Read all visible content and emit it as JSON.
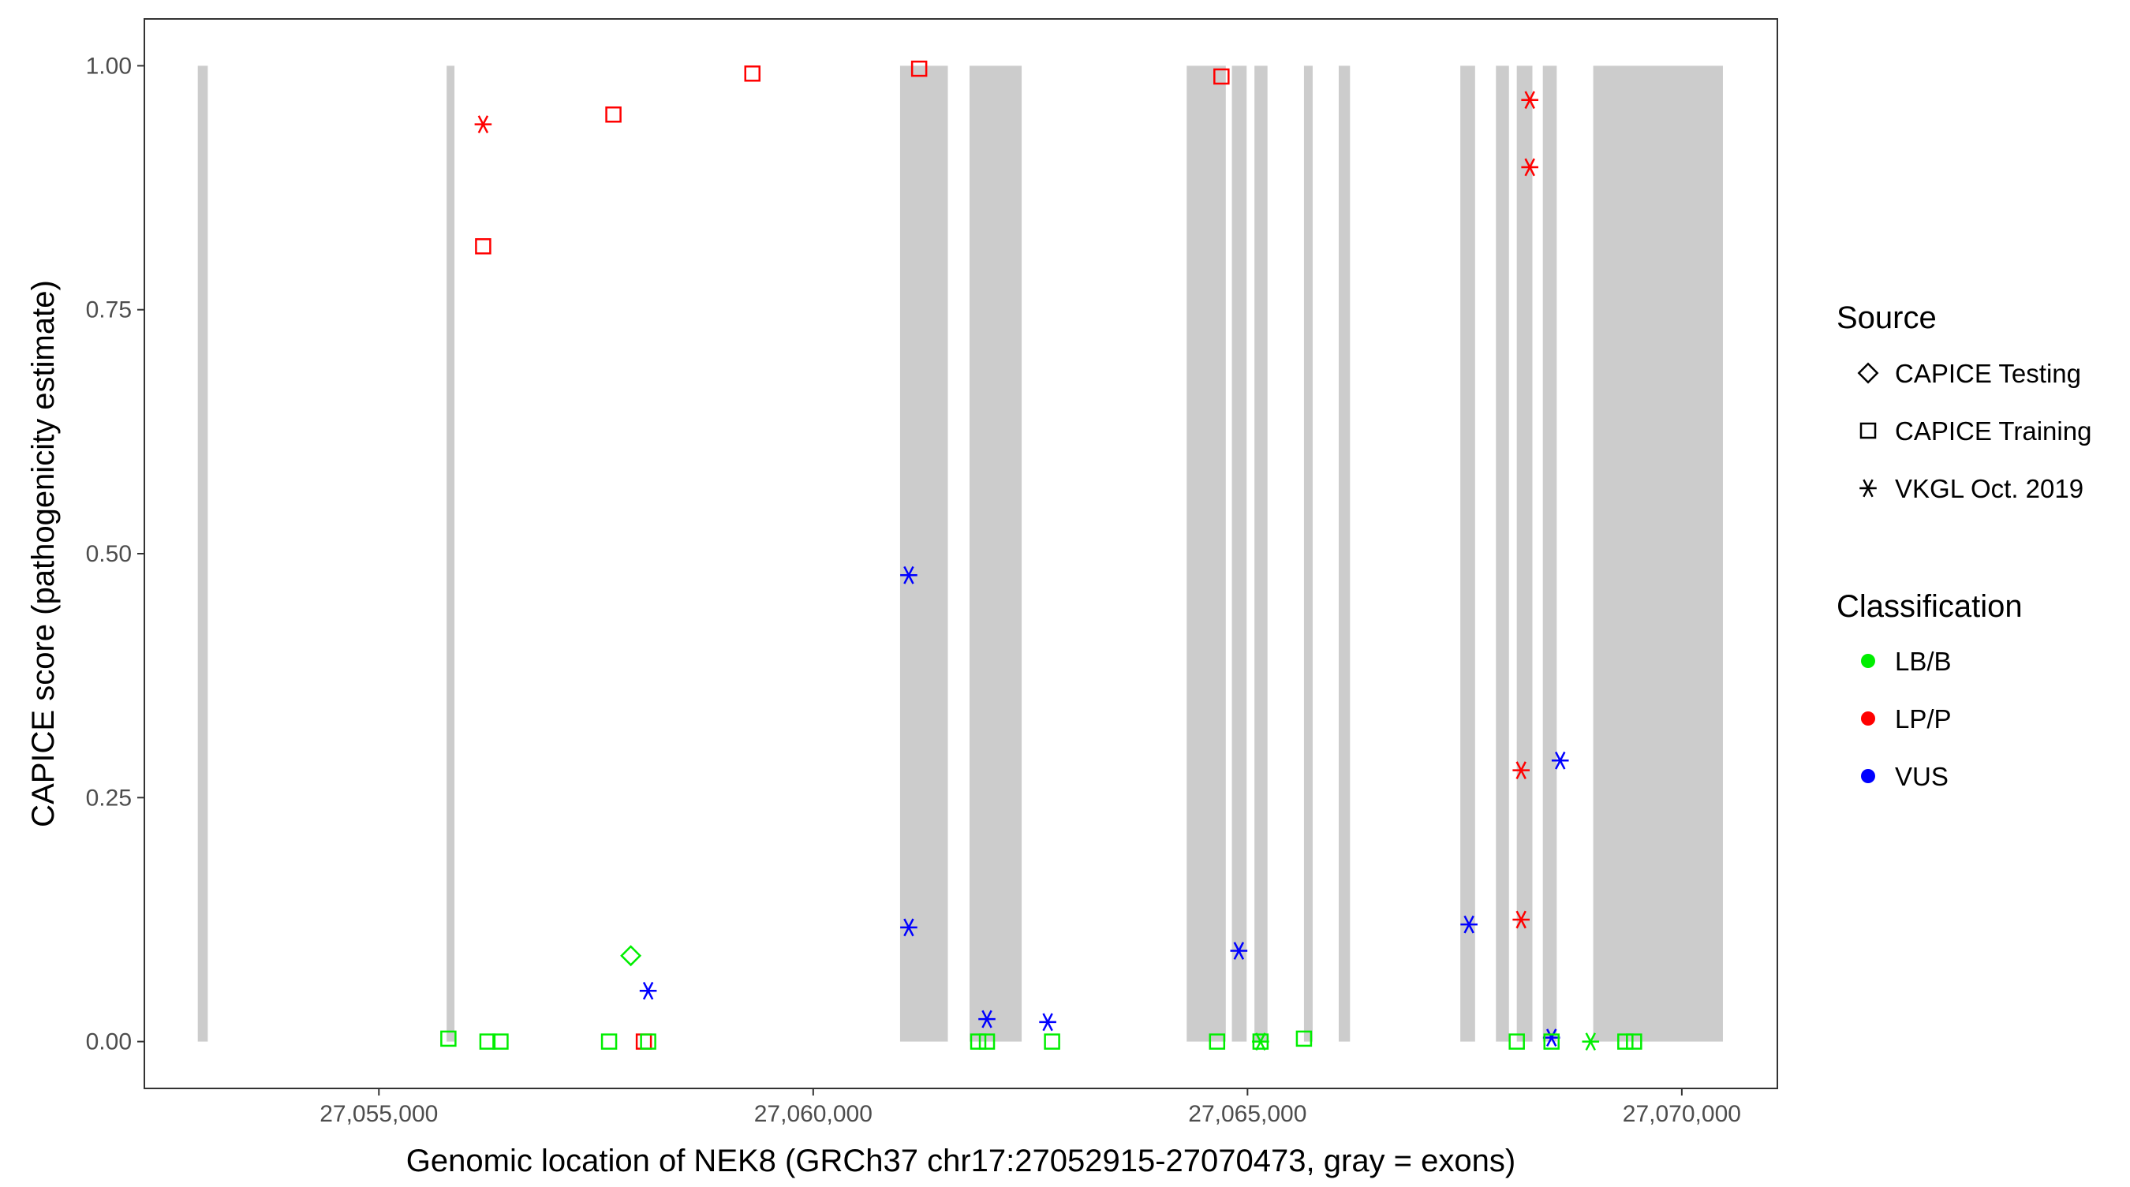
{
  "chart_data": {
    "type": "scatter",
    "xlabel": "Genomic location of NEK8 (GRCh37 chr17:27052915-27070473, gray = exons)",
    "ylabel": "CAPICE score (pathogenicity estimate)",
    "xlim": [
      27052300,
      27071100
    ],
    "ylim": [
      -0.048,
      1.048
    ],
    "x_ticks": [
      27055000,
      27060000,
      27065000,
      27070000
    ],
    "x_tick_labels": [
      "27,055,000",
      "27,060,000",
      "27,065,000",
      "27,070,000"
    ],
    "y_ticks": [
      0,
      0.25,
      0.5,
      0.75,
      1.0
    ],
    "y_tick_labels": [
      "0.00",
      "0.25",
      "0.50",
      "0.75",
      "1.00"
    ],
    "grid": false,
    "exons": [
      [
        27052915,
        27053030
      ],
      [
        27055780,
        27055870
      ],
      [
        27061000,
        27061550
      ],
      [
        27061800,
        27062400
      ],
      [
        27064300,
        27064750
      ],
      [
        27064820,
        27064990
      ],
      [
        27065080,
        27065230
      ],
      [
        27065650,
        27065750
      ],
      [
        27066050,
        27066180
      ],
      [
        27067450,
        27067620
      ],
      [
        27067860,
        27068010
      ],
      [
        27068100,
        27068280
      ],
      [
        27068400,
        27068560
      ],
      [
        27068980,
        27070473
      ]
    ],
    "legend": {
      "position": "right",
      "source_title": "Source",
      "source_items": [
        {
          "label": "CAPICE Testing",
          "shape": "diamond"
        },
        {
          "label": "CAPICE Training",
          "shape": "square"
        },
        {
          "label": "VKGL Oct. 2019",
          "shape": "asterisk"
        }
      ],
      "class_title": "Classification",
      "class_items": [
        {
          "label": "LB/B",
          "color": "#00ee00"
        },
        {
          "label": "LP/P",
          "color": "#ff0000"
        },
        {
          "label": "VUS",
          "color": "#0000ff"
        }
      ]
    },
    "points": [
      {
        "x": 27056200,
        "y": 0.94,
        "source": "VKGL Oct. 2019",
        "class": "LP/P"
      },
      {
        "x": 27056200,
        "y": 0.815,
        "source": "CAPICE Training",
        "class": "LP/P"
      },
      {
        "x": 27057700,
        "y": 0.95,
        "source": "CAPICE Training",
        "class": "LP/P"
      },
      {
        "x": 27059300,
        "y": 0.992,
        "source": "CAPICE Training",
        "class": "LP/P"
      },
      {
        "x": 27061220,
        "y": 0.997,
        "source": "CAPICE Training",
        "class": "LP/P"
      },
      {
        "x": 27064700,
        "y": 0.989,
        "source": "CAPICE Training",
        "class": "LP/P"
      },
      {
        "x": 27068250,
        "y": 0.965,
        "source": "VKGL Oct. 2019",
        "class": "LP/P"
      },
      {
        "x": 27068250,
        "y": 0.896,
        "source": "VKGL Oct. 2019",
        "class": "LP/P"
      },
      {
        "x": 27068150,
        "y": 0.278,
        "source": "VKGL Oct. 2019",
        "class": "LP/P"
      },
      {
        "x": 27068150,
        "y": 0.125,
        "source": "VKGL Oct. 2019",
        "class": "LP/P"
      },
      {
        "x": 27058050,
        "y": 0.0,
        "source": "CAPICE Training",
        "class": "LP/P"
      },
      {
        "x": 27061100,
        "y": 0.478,
        "source": "VKGL Oct. 2019",
        "class": "VUS"
      },
      {
        "x": 27061100,
        "y": 0.117,
        "source": "VKGL Oct. 2019",
        "class": "VUS"
      },
      {
        "x": 27058100,
        "y": 0.052,
        "source": "VKGL Oct. 2019",
        "class": "VUS"
      },
      {
        "x": 27062000,
        "y": 0.023,
        "source": "VKGL Oct. 2019",
        "class": "VUS"
      },
      {
        "x": 27062700,
        "y": 0.02,
        "source": "VKGL Oct. 2019",
        "class": "VUS"
      },
      {
        "x": 27064900,
        "y": 0.093,
        "source": "VKGL Oct. 2019",
        "class": "VUS"
      },
      {
        "x": 27067550,
        "y": 0.12,
        "source": "VKGL Oct. 2019",
        "class": "VUS"
      },
      {
        "x": 27068600,
        "y": 0.288,
        "source": "VKGL Oct. 2019",
        "class": "VUS"
      },
      {
        "x": 27068500,
        "y": 0.004,
        "source": "VKGL Oct. 2019",
        "class": "VUS"
      },
      {
        "x": 27057900,
        "y": 0.088,
        "source": "CAPICE Testing",
        "class": "LB/B"
      },
      {
        "x": 27055800,
        "y": 0.003,
        "source": "CAPICE Training",
        "class": "LB/B"
      },
      {
        "x": 27056250,
        "y": 0.0,
        "source": "CAPICE Training",
        "class": "LB/B"
      },
      {
        "x": 27056400,
        "y": 0.0,
        "source": "CAPICE Training",
        "class": "LB/B"
      },
      {
        "x": 27057650,
        "y": 0.0,
        "source": "CAPICE Training",
        "class": "LB/B"
      },
      {
        "x": 27058100,
        "y": 0.0,
        "source": "CAPICE Training",
        "class": "LB/B"
      },
      {
        "x": 27061900,
        "y": 0.0,
        "source": "CAPICE Training",
        "class": "LB/B"
      },
      {
        "x": 27062000,
        "y": 0.0,
        "source": "CAPICE Training",
        "class": "LB/B"
      },
      {
        "x": 27062750,
        "y": 0.0,
        "source": "CAPICE Training",
        "class": "LB/B"
      },
      {
        "x": 27064650,
        "y": 0.0,
        "source": "CAPICE Training",
        "class": "LB/B"
      },
      {
        "x": 27065150,
        "y": 0.0,
        "source": "CAPICE Training",
        "class": "LB/B"
      },
      {
        "x": 27065150,
        "y": 0.0,
        "source": "VKGL Oct. 2019",
        "class": "LB/B"
      },
      {
        "x": 27065650,
        "y": 0.003,
        "source": "CAPICE Training",
        "class": "LB/B"
      },
      {
        "x": 27068100,
        "y": 0.0,
        "source": "CAPICE Training",
        "class": "LB/B"
      },
      {
        "x": 27068500,
        "y": 0.0,
        "source": "CAPICE Training",
        "class": "LB/B"
      },
      {
        "x": 27068950,
        "y": 0.0,
        "source": "VKGL Oct. 2019",
        "class": "LB/B"
      },
      {
        "x": 27069350,
        "y": 0.0,
        "source": "CAPICE Training",
        "class": "LB/B"
      },
      {
        "x": 27069450,
        "y": 0.0,
        "source": "CAPICE Training",
        "class": "LB/B"
      }
    ]
  }
}
